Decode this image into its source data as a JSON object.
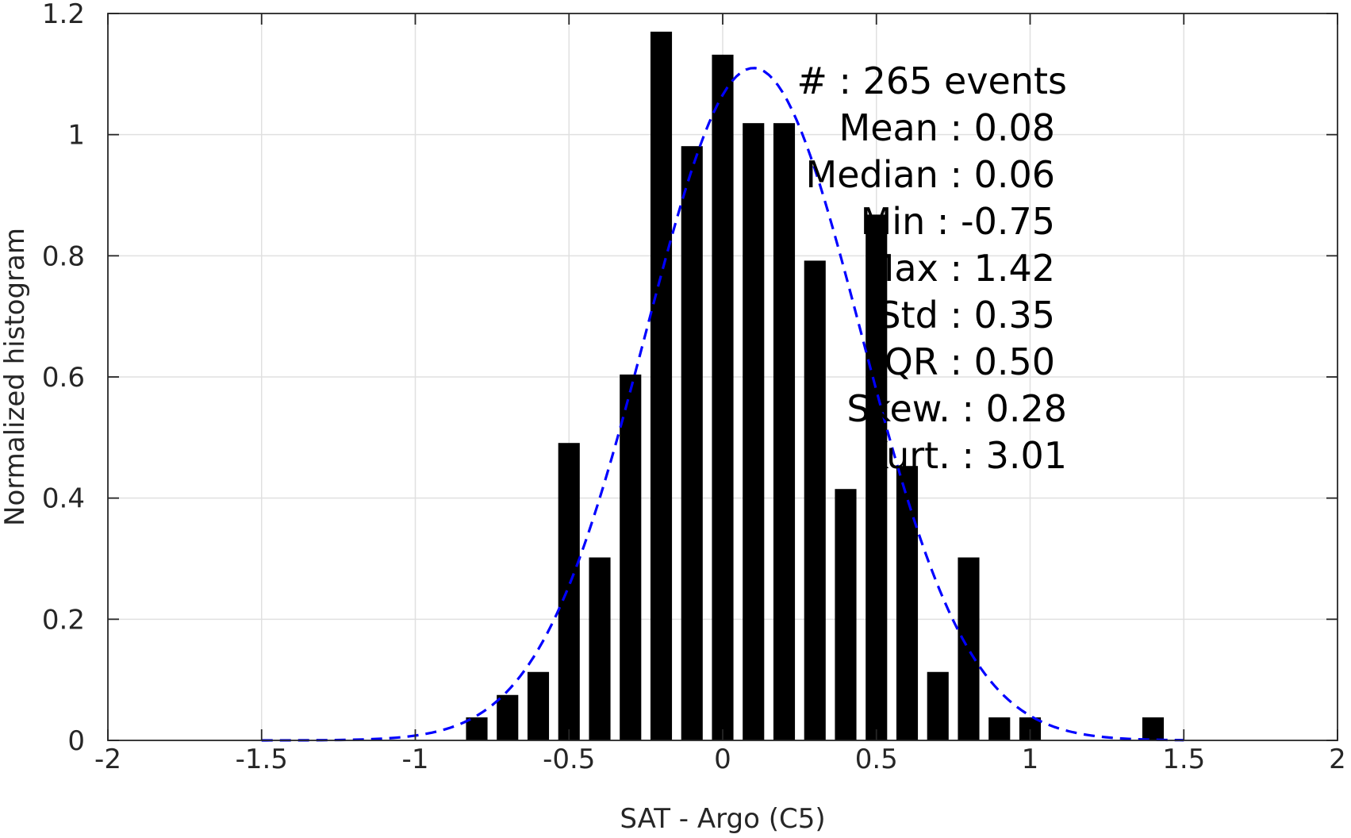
{
  "chart_data": {
    "type": "bar",
    "xlabel": "SAT - Argo (C5)",
    "ylabel": "Normalized histogram",
    "xlim": [
      -2,
      2
    ],
    "ylim": [
      0,
      1.2
    ],
    "xticks": [
      -2,
      -1.5,
      -1,
      -0.5,
      0,
      0.5,
      1,
      1.5,
      2
    ],
    "xtick_labels": [
      "-2",
      "-1.5",
      "-1",
      "-0.5",
      "0",
      "0.5",
      "1",
      "1.5",
      "2"
    ],
    "yticks": [
      0,
      0.2,
      0.4,
      0.6,
      0.8,
      1,
      1.2
    ],
    "ytick_labels": [
      "0",
      "0.2",
      "0.4",
      "0.6",
      "0.8",
      "1",
      "1.2"
    ],
    "grid": true,
    "bar_color": "#000000",
    "bar_width": 0.07,
    "bars": [
      {
        "x": -0.8,
        "value": 0.038
      },
      {
        "x": -0.7,
        "value": 0.075
      },
      {
        "x": -0.6,
        "value": 0.113
      },
      {
        "x": -0.5,
        "value": 0.491
      },
      {
        "x": -0.4,
        "value": 0.302
      },
      {
        "x": -0.3,
        "value": 0.604
      },
      {
        "x": -0.2,
        "value": 1.17
      },
      {
        "x": -0.1,
        "value": 0.981
      },
      {
        "x": 0.0,
        "value": 1.132
      },
      {
        "x": 0.1,
        "value": 1.019
      },
      {
        "x": 0.2,
        "value": 1.019
      },
      {
        "x": 0.3,
        "value": 0.792
      },
      {
        "x": 0.4,
        "value": 0.415
      },
      {
        "x": 0.5,
        "value": 0.868
      },
      {
        "x": 0.6,
        "value": 0.453
      },
      {
        "x": 0.7,
        "value": 0.113
      },
      {
        "x": 0.8,
        "value": 0.302
      },
      {
        "x": 0.9,
        "value": 0.038
      },
      {
        "x": 1.0,
        "value": 0.038
      },
      {
        "x": 1.4,
        "value": 0.038
      }
    ],
    "fit_curve": {
      "style": "dashed",
      "color": "#0000ff",
      "x_range": [
        -1.5,
        1.5
      ],
      "mean": 0.1,
      "std": 0.35,
      "peak": 1.11
    },
    "stats": [
      {
        "text": "#  : 265 events",
        "anchor": "1345"
      },
      {
        "text": "Mean : 0.08",
        "anchor": "1330"
      },
      {
        "text": "Median : 0.06",
        "anchor": "1330"
      },
      {
        "text": "Min : -0.75",
        "anchor": "1330"
      },
      {
        "text": "Max : 1.42",
        "anchor": "1330"
      },
      {
        "text": "Std : 0.35",
        "anchor": "1330"
      },
      {
        "text": "IQR : 0.50",
        "anchor": "1330"
      },
      {
        "text": "Skew. : 0.28",
        "anchor": "1345"
      },
      {
        "text": "Kurt. : 3.01",
        "anchor": "1345"
      }
    ]
  }
}
